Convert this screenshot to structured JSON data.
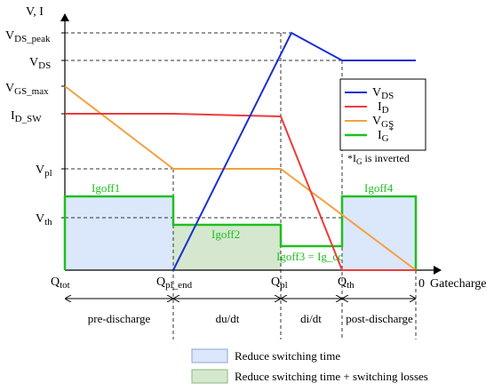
{
  "chart_data": {
    "type": "line",
    "title": "",
    "xlabel": "Gatecharge",
    "ylabel": "V, I",
    "x_ticks": [
      {
        "main": "Q",
        "sub": "tot"
      },
      {
        "main": "Q",
        "sub": "pl_end"
      },
      {
        "main": "Q",
        "sub": "pl"
      },
      {
        "main": "Q",
        "sub": "th"
      },
      {
        "main": "0",
        "sub": ""
      }
    ],
    "y_ticks": [
      {
        "main": "V",
        "sub": "DS_peak"
      },
      {
        "main": "V",
        "sub": "DS"
      },
      {
        "main": "V",
        "sub": "GS_max"
      },
      {
        "main": "I",
        "sub": "D_SW"
      },
      {
        "main": "V",
        "sub": "pl"
      },
      {
        "main": "V",
        "sub": "th"
      }
    ],
    "series": [
      {
        "name": "V",
        "name_sub": "DS",
        "name_sup": "",
        "color": "#1a2fd6"
      },
      {
        "name": "I",
        "name_sub": "D",
        "name_sup": "",
        "color": "#ee3b3b"
      },
      {
        "name": "V",
        "name_sub": "GS",
        "name_sup": "",
        "color": "#f5a040"
      },
      {
        "name": "I",
        "name_sub": "G",
        "name_sup": "*",
        "color": "#1fbf1f"
      }
    ],
    "note": {
      "prefix": "*I",
      "sub": "G",
      "suffix": " is inverted"
    },
    "gate_current_labels": [
      "Igoff1",
      "Igoff2",
      "Igoff3 = Ig_cc",
      "Igoff4"
    ],
    "phases": [
      "pre-discharge",
      "du/dt",
      "di/dt",
      "post-discharge"
    ],
    "legend_bottom": [
      {
        "label": "Reduce switching time",
        "fill": "#dbe7fa",
        "stroke": "#8aa6d6"
      },
      {
        "label": "Reduce switching time + switching losses",
        "fill": "#d5e8cf",
        "stroke": "#8ab87a"
      }
    ]
  }
}
